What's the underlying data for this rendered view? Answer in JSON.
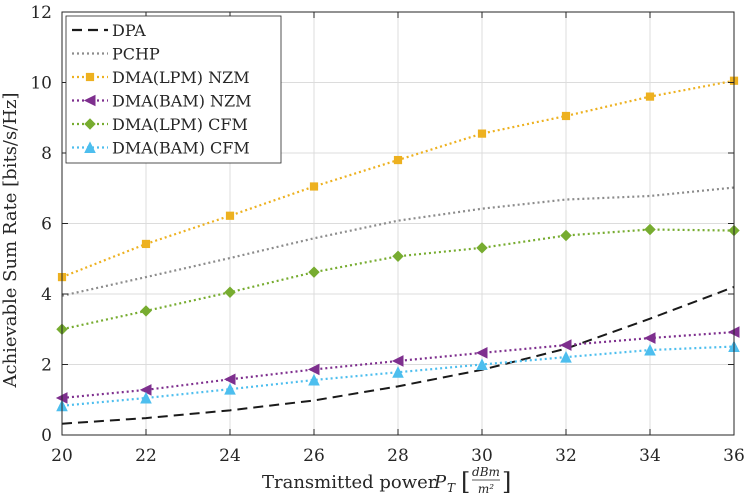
{
  "chart_data": {
    "type": "line",
    "title": "",
    "xlabel": "Transmitted power P_T [dBm/m^2]",
    "xlabel_parts": {
      "main": "Transmitted power ",
      "var": "P",
      "sub": "T",
      "open": "[",
      "num": "dBm",
      "den": "m²",
      "close": "]"
    },
    "ylabel": "Achievable Sum Rate [bits/s/Hz]",
    "xlim": [
      20,
      36
    ],
    "ylim": [
      0,
      12
    ],
    "x": [
      20,
      22,
      24,
      26,
      28,
      30,
      32,
      34,
      36
    ],
    "xticks": [
      "20",
      "22",
      "24",
      "26",
      "28",
      "30",
      "32",
      "34",
      "36"
    ],
    "yticks": [
      "0",
      "2",
      "4",
      "6",
      "8",
      "10",
      "12"
    ],
    "grid": true,
    "legend_position": "top-left",
    "series": [
      {
        "name": "DPA",
        "color": "#1a1a1a",
        "style": "dashed",
        "marker": "none",
        "values": [
          0.32,
          0.48,
          0.7,
          0.98,
          1.38,
          1.85,
          2.45,
          3.3,
          4.2
        ]
      },
      {
        "name": "PCHP",
        "color": "#8c8c8c",
        "style": "dotted",
        "marker": "none",
        "values": [
          3.95,
          4.48,
          5.02,
          5.58,
          6.08,
          6.42,
          6.68,
          6.78,
          7.02
        ]
      },
      {
        "name": "DMA(LPM) NZM",
        "color": "#EDB120",
        "style": "dotted",
        "marker": "square",
        "values": [
          4.48,
          5.42,
          6.22,
          7.05,
          7.8,
          8.55,
          9.05,
          9.6,
          10.05
        ]
      },
      {
        "name": "DMA(BAM) NZM",
        "color": "#7E2F8E",
        "style": "dotted",
        "marker": "triangle-left",
        "values": [
          1.05,
          1.28,
          1.58,
          1.86,
          2.1,
          2.33,
          2.55,
          2.75,
          2.92
        ]
      },
      {
        "name": "DMA(LPM) CFM",
        "color": "#77AC30",
        "style": "dotted",
        "marker": "diamond",
        "values": [
          3.0,
          3.52,
          4.05,
          4.62,
          5.07,
          5.31,
          5.66,
          5.83,
          5.8
        ]
      },
      {
        "name": "DMA(BAM) CFM",
        "color": "#4DBEEE",
        "style": "dotted",
        "marker": "triangle-up",
        "values": [
          0.83,
          1.05,
          1.3,
          1.56,
          1.78,
          2.0,
          2.21,
          2.41,
          2.51
        ]
      }
    ]
  }
}
